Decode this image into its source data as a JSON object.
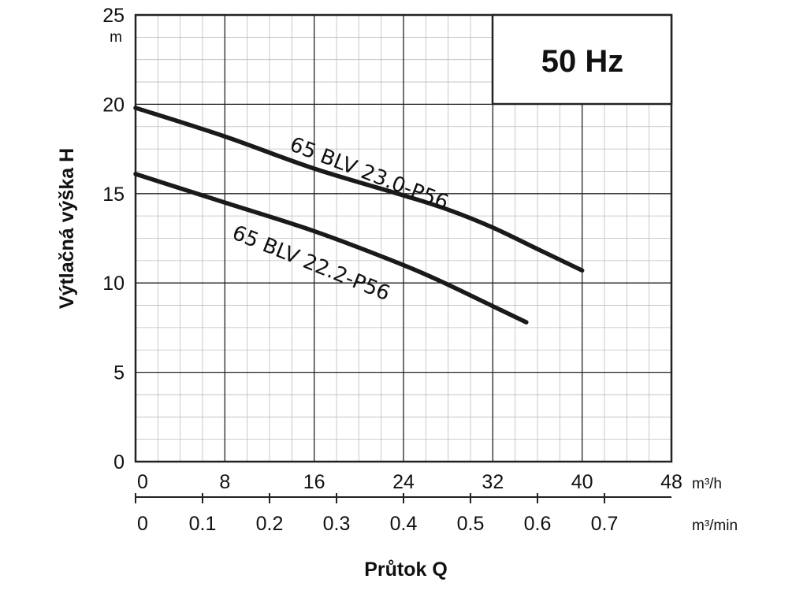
{
  "chart_data": {
    "type": "line",
    "badge": "50 Hz",
    "ylabel": "Výtlačná výška H",
    "xlabel": "Průtok Q",
    "y_unit": "m",
    "x_unit_primary": "m³/h",
    "x_unit_secondary": "m³/min",
    "ylim": [
      0,
      25
    ],
    "xlim": [
      0,
      48
    ],
    "y_ticks": [
      "0",
      "5",
      "10",
      "15",
      "20",
      "25"
    ],
    "x_ticks_primary": [
      "0",
      "8",
      "16",
      "24",
      "32",
      "40",
      "48"
    ],
    "x_ticks_secondary": [
      "0",
      "0.1",
      "0.2",
      "0.3",
      "0.4",
      "0.5",
      "0.6",
      "0.7"
    ],
    "grid": true,
    "series": [
      {
        "name": "65 BLV 23.0-P56",
        "points": [
          [
            0,
            19.8
          ],
          [
            8,
            18.2
          ],
          [
            16,
            16.4
          ],
          [
            24,
            14.9
          ],
          [
            28,
            14.1
          ],
          [
            32,
            13.1
          ],
          [
            36,
            11.9
          ],
          [
            40,
            10.7
          ]
        ]
      },
      {
        "name": "65 BLV 22.2-P56",
        "points": [
          [
            0,
            16.1
          ],
          [
            8,
            14.5
          ],
          [
            16,
            12.9
          ],
          [
            24,
            11.0
          ],
          [
            28,
            9.9
          ],
          [
            32,
            8.7
          ],
          [
            35,
            7.8
          ]
        ]
      }
    ]
  }
}
